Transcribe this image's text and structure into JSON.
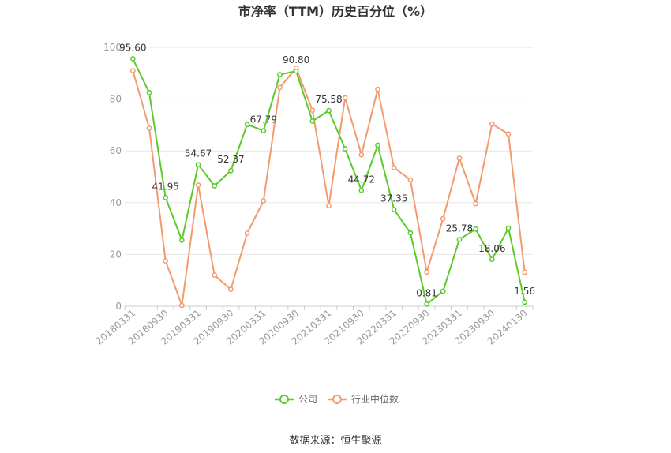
{
  "chart_data": {
    "type": "line",
    "title": "市净率（TTM）历史百分位（%）",
    "xlabel": "",
    "ylabel": "",
    "ylim": [
      0,
      100
    ],
    "yticks": [
      0,
      20,
      40,
      60,
      80,
      100
    ],
    "x": [
      "20180331",
      "20180630",
      "20180930",
      "20181231",
      "20190331",
      "20190630",
      "20190930",
      "20191231",
      "20200331",
      "20200630",
      "20200930",
      "20201231",
      "20210331",
      "20210630",
      "20210930",
      "20211231",
      "20220331",
      "20220630",
      "20220930",
      "20221231",
      "20230331",
      "20230630",
      "20230930",
      "20231231",
      "20240130"
    ],
    "xtick_labels": [
      "20180331",
      "20180930",
      "20190331",
      "20190930",
      "20200331",
      "20200930",
      "20210331",
      "20210930",
      "20220331",
      "20220930",
      "20230331",
      "20230930",
      "20240130"
    ],
    "series": [
      {
        "name": "公司",
        "color": "#5cc92d",
        "values": [
          95.6,
          82.5,
          41.95,
          25.5,
          54.67,
          46.5,
          52.37,
          70.2,
          67.79,
          89.5,
          90.8,
          71.5,
          75.58,
          60.8,
          44.72,
          62.2,
          37.35,
          28.3,
          0.81,
          5.8,
          25.78,
          29.8,
          18.06,
          30.2,
          1.56
        ],
        "labels": [
          "95.60",
          "",
          "41.95",
          "",
          "54.67",
          "",
          "52.37",
          "",
          "67.79",
          "",
          "90.80",
          "",
          "75.58",
          "",
          "44.72",
          "",
          "37.35",
          "",
          "0.81",
          "",
          "25.78",
          "",
          "18.06",
          "",
          "1.56"
        ]
      },
      {
        "name": "行业中位数",
        "color": "#f39a6f",
        "values": [
          91.0,
          68.8,
          17.5,
          0.3,
          46.8,
          12.0,
          6.5,
          28.2,
          40.7,
          84.5,
          92.0,
          75.7,
          38.8,
          80.5,
          58.5,
          83.8,
          53.5,
          48.8,
          13.2,
          33.8,
          57.2,
          39.6,
          70.4,
          66.5,
          13.1
        ]
      }
    ],
    "legend_position": "bottom-center",
    "grid": true
  },
  "source_text": "数据来源：恒生聚源"
}
